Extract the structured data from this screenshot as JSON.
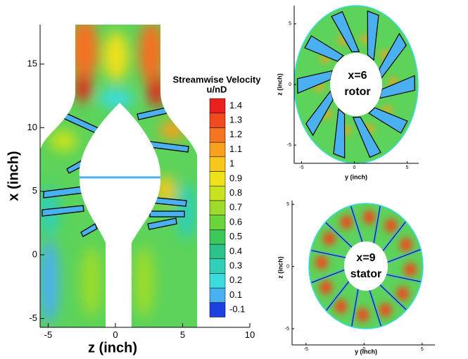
{
  "chart_data": [
    {
      "type": "contour",
      "xlabel": "z (inch)",
      "ylabel": "x (inch)",
      "xlim": [
        -5.6,
        10
      ],
      "ylim": [
        -5.7,
        18.1
      ],
      "xticks": [
        -5,
        0,
        5,
        10
      ],
      "yticks": [
        -5,
        0,
        5,
        10,
        15
      ],
      "colorbar": {
        "title": "Streamwise Velocity",
        "subtitle": "u/nD",
        "levels": [
          -0.1,
          0.1,
          0.2,
          0.3,
          0.4,
          0.5,
          0.6,
          0.7,
          0.8,
          0.9,
          1,
          1.1,
          1.2,
          1.3,
          1.4
        ],
        "colors": [
          "#1d3fe0",
          "#4ab0f0",
          "#3adce0",
          "#2fcfb8",
          "#2cc38a",
          "#3dc95a",
          "#6ad43a",
          "#9edc2b",
          "#c8e21f",
          "#eee01b",
          "#f7c81a",
          "#f8a11e",
          "#f5741f",
          "#f04a1e",
          "#e8211d"
        ]
      }
    },
    {
      "type": "contour",
      "xlabel": "y (inch)",
      "ylabel": "z (inch)",
      "xlim": [
        -5.7,
        6.1
      ],
      "ylim": [
        -6.5,
        6.5
      ],
      "xticks": [
        -5,
        0,
        5
      ],
      "yticks": [
        -5,
        0,
        5
      ],
      "annotations": [
        "x=6",
        "rotor"
      ]
    },
    {
      "type": "contour",
      "xlabel": "y (inch)",
      "ylabel": "z (inch)",
      "xlim": [
        -6.2,
        6.1
      ],
      "ylim": [
        -6.3,
        5.3
      ],
      "xticks": [
        -5,
        0,
        5
      ],
      "yticks": [
        -5,
        0,
        5
      ],
      "annotations": [
        "x=9",
        "stator"
      ]
    }
  ]
}
